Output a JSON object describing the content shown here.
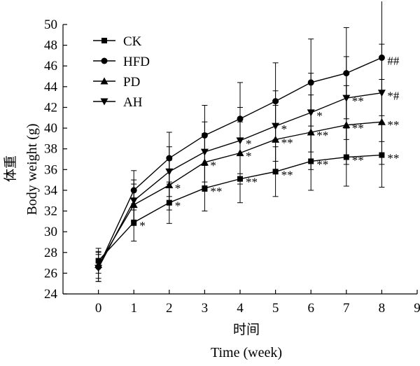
{
  "chart_data": {
    "type": "line",
    "ylabel_cn": "体重",
    "ylabel": "Body weight (g)",
    "xlabel_cn": "时间",
    "xlabel": "Time (week)",
    "xlim": [
      -1,
      9
    ],
    "ylim": [
      24,
      50
    ],
    "xticks": [
      0,
      1,
      2,
      3,
      4,
      5,
      6,
      7,
      8,
      9
    ],
    "yticks": [
      24,
      26,
      28,
      30,
      32,
      34,
      36,
      38,
      40,
      42,
      44,
      46,
      48,
      50
    ],
    "legend_position": "top-left",
    "x": [
      0,
      1,
      2,
      3,
      4,
      5,
      6,
      7,
      8
    ],
    "series": [
      {
        "name": "CK",
        "marker": "square",
        "values": [
          27.2,
          30.9,
          32.8,
          34.2,
          35.1,
          35.8,
          36.8,
          37.2,
          37.4
        ],
        "errors": [
          1.2,
          1.8,
          2.0,
          2.2,
          2.3,
          2.4,
          2.8,
          2.8,
          3.1
        ],
        "annotations": [
          "",
          "*",
          "*",
          "**",
          "**",
          "**",
          "**",
          "**",
          "**"
        ]
      },
      {
        "name": "HFD",
        "marker": "circle",
        "values": [
          26.6,
          34.0,
          37.1,
          39.3,
          40.9,
          42.6,
          44.4,
          45.3,
          46.8
        ],
        "errors": [
          1.4,
          1.9,
          2.5,
          2.9,
          3.5,
          3.7,
          4.2,
          4.4,
          5.6
        ],
        "annotations": [
          "",
          "",
          "",
          "",
          "",
          "",
          "",
          "",
          "##"
        ]
      },
      {
        "name": "PD",
        "marker": "triangle-up",
        "values": [
          26.8,
          32.6,
          34.5,
          36.7,
          37.6,
          38.9,
          39.6,
          40.3,
          40.6
        ],
        "errors": [
          1.3,
          2.0,
          2.4,
          2.8,
          3.0,
          3.3,
          3.6,
          3.8,
          4.1
        ],
        "annotations": [
          "",
          "",
          "*",
          "*",
          "*",
          "**",
          "**",
          "**",
          "**"
        ]
      },
      {
        "name": "AH",
        "marker": "triangle-down",
        "values": [
          26.5,
          33.0,
          35.8,
          37.7,
          38.8,
          40.2,
          41.5,
          42.9,
          43.4
        ],
        "errors": [
          1.3,
          2.0,
          2.4,
          2.9,
          3.2,
          3.4,
          3.8,
          4.0,
          4.7
        ],
        "annotations": [
          "",
          "",
          "",
          "",
          "*",
          "*",
          "*",
          "**",
          "*#"
        ]
      }
    ]
  }
}
